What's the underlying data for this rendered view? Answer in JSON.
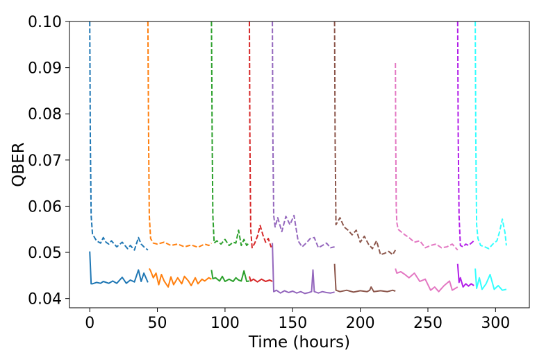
{
  "chart_data": {
    "type": "line",
    "title": "",
    "xlabel": "Time (hours)",
    "ylabel": "QBER",
    "xlim": [
      -15,
      325
    ],
    "ylim": [
      0.038,
      0.1
    ],
    "xticks": [
      0,
      50,
      100,
      150,
      200,
      250,
      300
    ],
    "xtick_labels": [
      "0",
      "50",
      "100",
      "150",
      "200",
      "250",
      "300"
    ],
    "yticks": [
      0.04,
      0.05,
      0.06,
      0.07,
      0.08,
      0.09,
      0.1
    ],
    "ytick_labels": [
      "0.04",
      "0.05",
      "0.06",
      "0.07",
      "0.08",
      "0.09",
      "0.10"
    ],
    "grid": false,
    "legend": "none",
    "series": [
      {
        "color": "#1f77b4",
        "style": "dashed",
        "x": [
          0,
          0.4,
          1,
          2,
          3,
          5,
          8,
          10,
          12,
          14,
          16,
          20,
          24,
          28,
          30,
          33,
          36,
          38,
          40,
          43
        ],
        "y": [
          0.1,
          0.075,
          0.058,
          0.054,
          0.0535,
          0.0525,
          0.052,
          0.0532,
          0.0522,
          0.0518,
          0.0525,
          0.0512,
          0.0522,
          0.0508,
          0.0515,
          0.0505,
          0.0532,
          0.0518,
          0.0512,
          0.0505
        ]
      },
      {
        "color": "#1f77b4",
        "style": "solid",
        "x": [
          0,
          1,
          2,
          5,
          8,
          10,
          14,
          17,
          20,
          24,
          27,
          30,
          33,
          36,
          38,
          40,
          43
        ],
        "y": [
          0.0502,
          0.0432,
          0.0432,
          0.0435,
          0.0433,
          0.0437,
          0.0433,
          0.0438,
          0.0433,
          0.0446,
          0.0433,
          0.044,
          0.0436,
          0.0462,
          0.0437,
          0.0455,
          0.0435
        ]
      },
      {
        "color": "#ff7f0e",
        "style": "dashed",
        "x": [
          43,
          43.5,
          44,
          45,
          47,
          50,
          55,
          60,
          65,
          70,
          75,
          80,
          85,
          88,
          90
        ],
        "y": [
          0.1,
          0.075,
          0.058,
          0.053,
          0.052,
          0.0518,
          0.0522,
          0.0515,
          0.0518,
          0.0512,
          0.0516,
          0.0511,
          0.0518,
          0.0515,
          0.052
        ]
      },
      {
        "color": "#ff7f0e",
        "style": "solid",
        "x": [
          44,
          45,
          47,
          49,
          51,
          53,
          55,
          58,
          60,
          62,
          65,
          68,
          70,
          73,
          75,
          78,
          80,
          83,
          85,
          88,
          90
        ],
        "y": [
          0.0465,
          0.046,
          0.0445,
          0.0455,
          0.043,
          0.0452,
          0.0438,
          0.0425,
          0.0447,
          0.043,
          0.0445,
          0.0432,
          0.0448,
          0.0438,
          0.0428,
          0.0445,
          0.0432,
          0.0442,
          0.0438,
          0.0445,
          0.0442
        ]
      },
      {
        "color": "#2ca02c",
        "style": "dashed",
        "x": [
          90,
          90.5,
          91,
          92,
          94,
          97,
          100,
          103,
          106,
          108,
          110,
          112,
          114,
          116,
          118
        ],
        "y": [
          0.1,
          0.075,
          0.058,
          0.052,
          0.0525,
          0.0518,
          0.0528,
          0.0515,
          0.0522,
          0.052,
          0.0548,
          0.0515,
          0.0528,
          0.0515,
          0.0522
        ]
      },
      {
        "color": "#2ca02c",
        "style": "solid",
        "x": [
          90,
          91,
          93,
          96,
          98,
          100,
          103,
          106,
          108,
          110,
          112,
          114,
          116,
          118
        ],
        "y": [
          0.0462,
          0.0443,
          0.0445,
          0.0438,
          0.0448,
          0.0437,
          0.0442,
          0.0437,
          0.0445,
          0.044,
          0.0438,
          0.046,
          0.0437,
          0.0438
        ]
      },
      {
        "color": "#d62728",
        "style": "dashed",
        "x": [
          118,
          118.4,
          119,
          120,
          122,
          124,
          126,
          128,
          130,
          132,
          134,
          135
        ],
        "y": [
          0.1,
          0.075,
          0.055,
          0.051,
          0.052,
          0.0535,
          0.0558,
          0.0538,
          0.0522,
          0.053,
          0.0512,
          0.052
        ]
      },
      {
        "color": "#d62728",
        "style": "solid",
        "x": [
          118,
          119,
          121,
          124,
          127,
          130,
          133,
          135
        ],
        "y": [
          0.0448,
          0.0438,
          0.0442,
          0.0436,
          0.0442,
          0.0437,
          0.044,
          0.0437
        ]
      },
      {
        "color": "#9467bd",
        "style": "dashed",
        "x": [
          135,
          135.4,
          136,
          137,
          139,
          142,
          145,
          148,
          151,
          154,
          157,
          160,
          163,
          166,
          169,
          172,
          175,
          178,
          181
        ],
        "y": [
          0.1,
          0.075,
          0.058,
          0.0555,
          0.0575,
          0.0545,
          0.0578,
          0.056,
          0.058,
          0.0525,
          0.0512,
          0.052,
          0.053,
          0.0532,
          0.051,
          0.0515,
          0.052,
          0.051,
          0.0512
        ]
      },
      {
        "color": "#9467bd",
        "style": "solid",
        "x": [
          135,
          136,
          138,
          141,
          144,
          147,
          150,
          153,
          156,
          159,
          162,
          164,
          165,
          166,
          169,
          172,
          175,
          178,
          181
        ],
        "y": [
          0.052,
          0.0415,
          0.0418,
          0.0412,
          0.0417,
          0.0413,
          0.0416,
          0.0412,
          0.0415,
          0.0411,
          0.0413,
          0.0415,
          0.0462,
          0.0415,
          0.0412,
          0.0415,
          0.0413,
          0.0412,
          0.0414
        ]
      },
      {
        "color": "#8c564b",
        "style": "dashed",
        "x": [
          181,
          181.4,
          182,
          183,
          185,
          188,
          191,
          194,
          197,
          200,
          203,
          206,
          209,
          212,
          215,
          218,
          221,
          224,
          226
        ],
        "y": [
          0.1,
          0.075,
          0.056,
          0.0565,
          0.0575,
          0.0555,
          0.0548,
          0.0538,
          0.0548,
          0.0522,
          0.0535,
          0.0518,
          0.0508,
          0.0525,
          0.0495,
          0.0498,
          0.0502,
          0.0495,
          0.0505
        ]
      },
      {
        "color": "#8c564b",
        "style": "solid",
        "x": [
          181,
          182,
          185,
          190,
          195,
          200,
          205,
          207,
          208,
          210,
          215,
          220,
          224,
          226
        ],
        "y": [
          0.0475,
          0.0418,
          0.0415,
          0.0418,
          0.0414,
          0.0417,
          0.0415,
          0.0418,
          0.0425,
          0.0415,
          0.0417,
          0.0415,
          0.0418,
          0.0416
        ]
      },
      {
        "color": "#e377c2",
        "style": "dashed",
        "x": [
          226,
          226.2,
          226.6,
          227,
          228,
          230,
          233,
          236,
          240,
          244,
          248,
          252,
          256,
          260,
          264,
          268,
          272
        ],
        "y": [
          0.091,
          0.075,
          0.06,
          0.0565,
          0.055,
          0.0545,
          0.0538,
          0.0532,
          0.0522,
          0.0525,
          0.051,
          0.0515,
          0.0518,
          0.051,
          0.0512,
          0.0518,
          0.0505
        ]
      },
      {
        "color": "#e377c2",
        "style": "solid",
        "x": [
          226,
          227,
          230,
          233,
          236,
          240,
          244,
          248,
          252,
          255,
          258,
          262,
          266,
          268,
          272
        ],
        "y": [
          0.0465,
          0.0455,
          0.0458,
          0.0452,
          0.0445,
          0.0455,
          0.0437,
          0.0442,
          0.0418,
          0.0425,
          0.0415,
          0.0428,
          0.0438,
          0.0418,
          0.0425
        ]
      },
      {
        "color": "#b21ee8",
        "style": "dashed",
        "x": [
          272,
          272.4,
          273,
          274,
          276,
          278,
          280,
          282,
          284
        ],
        "y": [
          0.1,
          0.075,
          0.058,
          0.0515,
          0.0512,
          0.0518,
          0.0515,
          0.052,
          0.0525
        ]
      },
      {
        "color": "#b21ee8",
        "style": "solid",
        "x": [
          272,
          273,
          274,
          276,
          278,
          280,
          282,
          284
        ],
        "y": [
          0.0475,
          0.0435,
          0.0445,
          0.0425,
          0.0432,
          0.0427,
          0.0432,
          0.0428
        ]
      },
      {
        "color": "#33ffff",
        "style": "dashed",
        "x": [
          285,
          285.4,
          286,
          287,
          289,
          292,
          295,
          298,
          301,
          303,
          305,
          307,
          308
        ],
        "y": [
          0.1,
          0.075,
          0.056,
          0.053,
          0.0515,
          0.0512,
          0.0508,
          0.0518,
          0.0525,
          0.0545,
          0.0572,
          0.0542,
          0.0515
        ]
      },
      {
        "color": "#33ffff",
        "style": "solid",
        "x": [
          285,
          286,
          288,
          290,
          293,
          296,
          299,
          302,
          305,
          308
        ],
        "y": [
          0.0465,
          0.0422,
          0.0445,
          0.042,
          0.0432,
          0.0452,
          0.042,
          0.0428,
          0.0418,
          0.042
        ]
      }
    ]
  }
}
